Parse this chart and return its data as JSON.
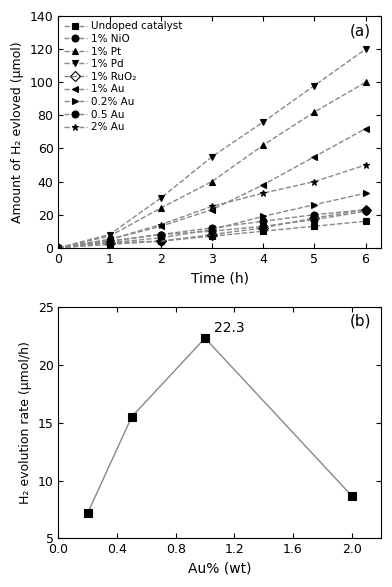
{
  "panel_a": {
    "title": "(a)",
    "xlabel": "Time (h)",
    "ylabel": "Amount of H₂ evloved (μmol)",
    "xlim": [
      0,
      6.3
    ],
    "ylim": [
      0,
      140
    ],
    "xticks": [
      0,
      1,
      2,
      3,
      4,
      5,
      6
    ],
    "yticks": [
      0,
      20,
      40,
      60,
      80,
      100,
      120,
      140
    ],
    "series": [
      {
        "label": "Undoped catalyst",
        "x": [
          0,
          1,
          2,
          3,
          4,
          5,
          6
        ],
        "y": [
          0,
          2,
          4,
          7,
          10,
          13,
          16
        ],
        "marker": "s",
        "fillstyle": "full",
        "color": "black"
      },
      {
        "label": "1% NiO",
        "x": [
          0,
          1,
          2,
          3,
          4,
          5,
          6
        ],
        "y": [
          0,
          4,
          8,
          12,
          16,
          20,
          23
        ],
        "marker": "o",
        "fillstyle": "full",
        "color": "black"
      },
      {
        "label": "1% Pt",
        "x": [
          0,
          1,
          2,
          3,
          4,
          5,
          6
        ],
        "y": [
          0,
          7,
          24,
          40,
          62,
          82,
          100
        ],
        "marker": "^",
        "fillstyle": "full",
        "color": "black"
      },
      {
        "label": "1% Pd",
        "x": [
          0,
          1,
          2,
          3,
          4,
          5,
          6
        ],
        "y": [
          0,
          8,
          30,
          55,
          76,
          98,
          120
        ],
        "marker": "v",
        "fillstyle": "full",
        "color": "black"
      },
      {
        "label": "1% RuO₂",
        "x": [
          0,
          1,
          2,
          3,
          4,
          5,
          6
        ],
        "y": [
          0,
          3,
          4,
          8,
          12,
          18,
          23
        ],
        "marker": "D",
        "fillstyle": "none",
        "color": "black"
      },
      {
        "label": "1% Au",
        "x": [
          0,
          1,
          2,
          3,
          4,
          5,
          6
        ],
        "y": [
          0,
          5,
          13,
          23,
          38,
          55,
          72
        ],
        "marker": "<",
        "fillstyle": "full",
        "color": "black"
      },
      {
        "label": "0.2% Au",
        "x": [
          0,
          1,
          2,
          3,
          4,
          5,
          6
        ],
        "y": [
          0,
          3,
          6,
          11,
          19,
          26,
          33
        ],
        "marker": ">",
        "fillstyle": "full",
        "color": "black"
      },
      {
        "label": "0.5 Au",
        "x": [
          0,
          1,
          2,
          3,
          4,
          5,
          6
        ],
        "y": [
          0,
          4,
          8,
          10,
          13,
          17,
          22
        ],
        "marker": "o",
        "fillstyle": "full",
        "color": "black"
      },
      {
        "label": "2% Au",
        "x": [
          0,
          1,
          2,
          3,
          4,
          5,
          6
        ],
        "y": [
          0,
          5,
          14,
          25,
          33,
          40,
          50
        ],
        "marker": "*",
        "fillstyle": "full",
        "color": "black"
      }
    ]
  },
  "panel_b": {
    "title": "(b)",
    "xlabel": "Au% (wt)",
    "ylabel": "H₂ evolution rate (μmol/h)",
    "xlim": [
      0.0,
      2.2
    ],
    "ylim": [
      5,
      25
    ],
    "xticks": [
      0.0,
      0.4,
      0.8,
      1.2,
      1.6,
      2.0
    ],
    "yticks": [
      5,
      10,
      15,
      20,
      25
    ],
    "x": [
      0.2,
      0.5,
      1.0,
      2.0
    ],
    "y": [
      7.2,
      15.5,
      22.3,
      8.7
    ],
    "peak_label": "22.3",
    "peak_x": 1.0,
    "peak_y": 22.3,
    "marker": "s",
    "color": "black"
  },
  "bg_color": "#ffffff",
  "line_color": "black",
  "line_color_gray": "#888888"
}
